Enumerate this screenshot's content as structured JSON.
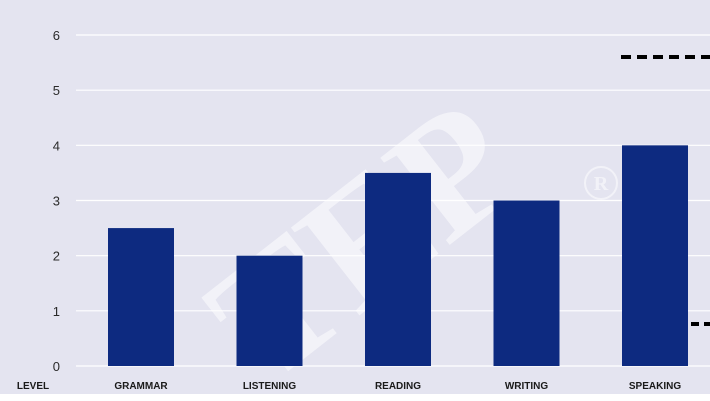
{
  "chart_data": {
    "type": "bar",
    "x_axis_label": "LEVEL",
    "categories": [
      "GRAMMAR",
      "LISTENING",
      "READING",
      "WRITING",
      "SPEAKING"
    ],
    "values": [
      2.5,
      2.0,
      3.5,
      3.0,
      4.0
    ],
    "y_ticks": [
      "0",
      "1",
      "2",
      "3",
      "4",
      "5",
      "6"
    ],
    "ylim": [
      0,
      6
    ],
    "grid": true,
    "legend": "none",
    "bar_color": "#0d2a80",
    "plot_background": "#e4e4f0",
    "watermark": "TEP",
    "watermark_mark": "®"
  }
}
